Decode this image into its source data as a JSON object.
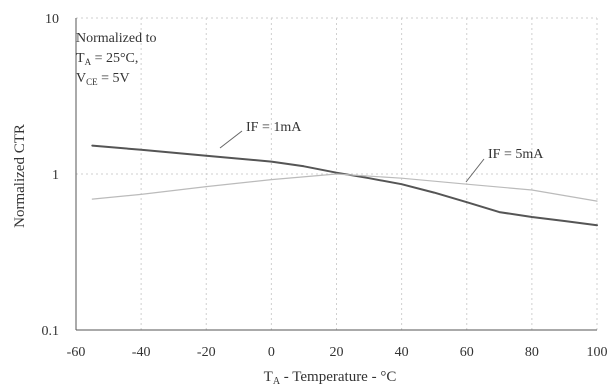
{
  "chart_data": {
    "type": "line",
    "title": "",
    "xlabel": {
      "main": "T",
      "sub": "A",
      "rest": " - Temperature - °C"
    },
    "ylabel": "Normalized CTR",
    "xlim": [
      -60,
      100
    ],
    "ylim": [
      0.1,
      10
    ],
    "yscale": "log",
    "grid": true,
    "xticks": [
      "-60",
      "-40",
      "-20",
      "0",
      "20",
      "40",
      "60",
      "80",
      "100"
    ],
    "yticks": [
      {
        "value": 10,
        "label": "10"
      },
      {
        "value": 1,
        "label": "1"
      },
      {
        "value": 0.1,
        "label": "0.1"
      }
    ],
    "note": {
      "line1": "Normalized to",
      "line2_main": "T",
      "line2_sub": "A",
      "line2_rest": " = 25°C,",
      "line3_main": "V",
      "line3_sub": "CE",
      "line3_rest": " = 5V"
    },
    "series": [
      {
        "name": "IF = 1mA",
        "color": "#555555",
        "width": 2,
        "x": [
          -55,
          -40,
          -20,
          0,
          10,
          20,
          30,
          40,
          50,
          60,
          70,
          80,
          90,
          100
        ],
        "y": [
          1.52,
          1.43,
          1.31,
          1.2,
          1.12,
          1.02,
          0.94,
          0.86,
          0.76,
          0.66,
          0.57,
          0.53,
          0.5,
          0.47
        ]
      },
      {
        "name": "IF = 5mA",
        "color": "#bbbbbb",
        "width": 1.2,
        "x": [
          -55,
          -40,
          -20,
          0,
          20,
          40,
          60,
          80,
          100
        ],
        "y": [
          0.69,
          0.74,
          0.83,
          0.92,
          1.0,
          0.94,
          0.86,
          0.79,
          0.67
        ]
      }
    ]
  }
}
